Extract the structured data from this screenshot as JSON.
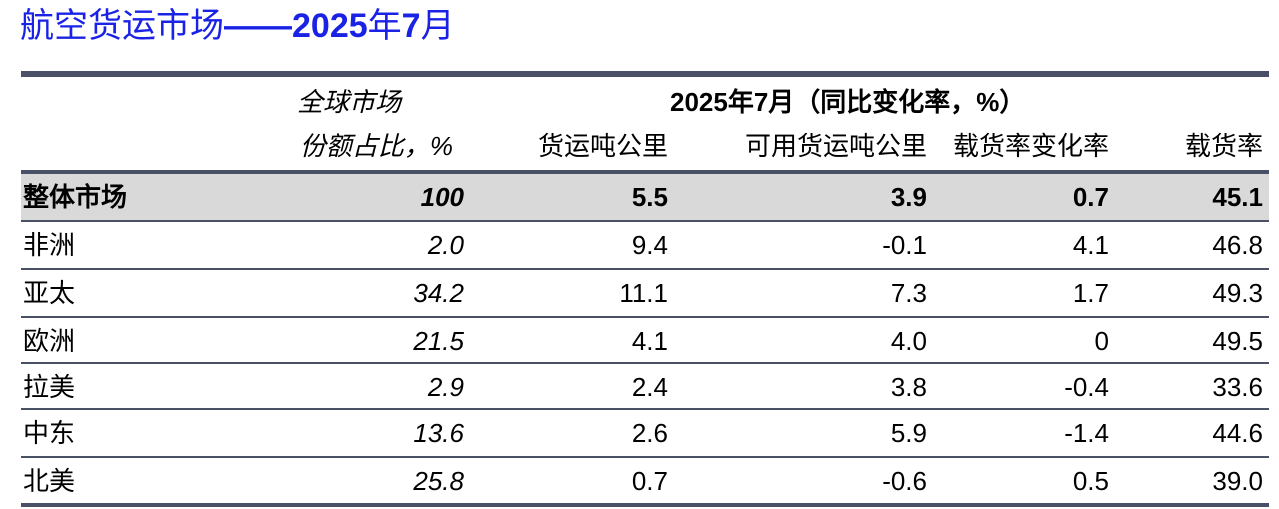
{
  "title": {
    "cn": "航空货运市场",
    "dash": "——",
    "year": "2025",
    "year_suffix": "年",
    "month": "7",
    "month_suffix": "月"
  },
  "header": {
    "share_line1": "全球市场",
    "share_line2": "份额占比，%",
    "group_label": "2025年7月（同比变化率，%）",
    "col1": "货运吨公里",
    "col2": "可用货运吨公里",
    "col3": "载货率变化率",
    "col4": "载货率"
  },
  "rows": [
    {
      "name": "整体市场",
      "share": "100",
      "ctk": "5.5",
      "actk": "3.9",
      "lf_change": "0.7",
      "lf": "45.1"
    },
    {
      "name": "非洲",
      "share": "2.0",
      "ctk": "9.4",
      "actk": "-0.1",
      "lf_change": "4.1",
      "lf": "46.8"
    },
    {
      "name": "亚太",
      "share": "34.2",
      "ctk": "11.1",
      "actk": "7.3",
      "lf_change": "1.7",
      "lf": "49.3"
    },
    {
      "name": "欧洲",
      "share": "21.5",
      "ctk": "4.1",
      "actk": "4.0",
      "lf_change": "0",
      "lf": "49.5"
    },
    {
      "name": "拉美",
      "share": "2.9",
      "ctk": "2.4",
      "actk": "3.8",
      "lf_change": "-0.4",
      "lf": "33.6"
    },
    {
      "name": "中东",
      "share": "13.6",
      "ctk": "2.6",
      "actk": "5.9",
      "lf_change": "-1.4",
      "lf": "44.6"
    },
    {
      "name": "北美",
      "share": "25.8",
      "ctk": "0.7",
      "actk": "-0.6",
      "lf_change": "0.5",
      "lf": "39.0"
    }
  ]
}
